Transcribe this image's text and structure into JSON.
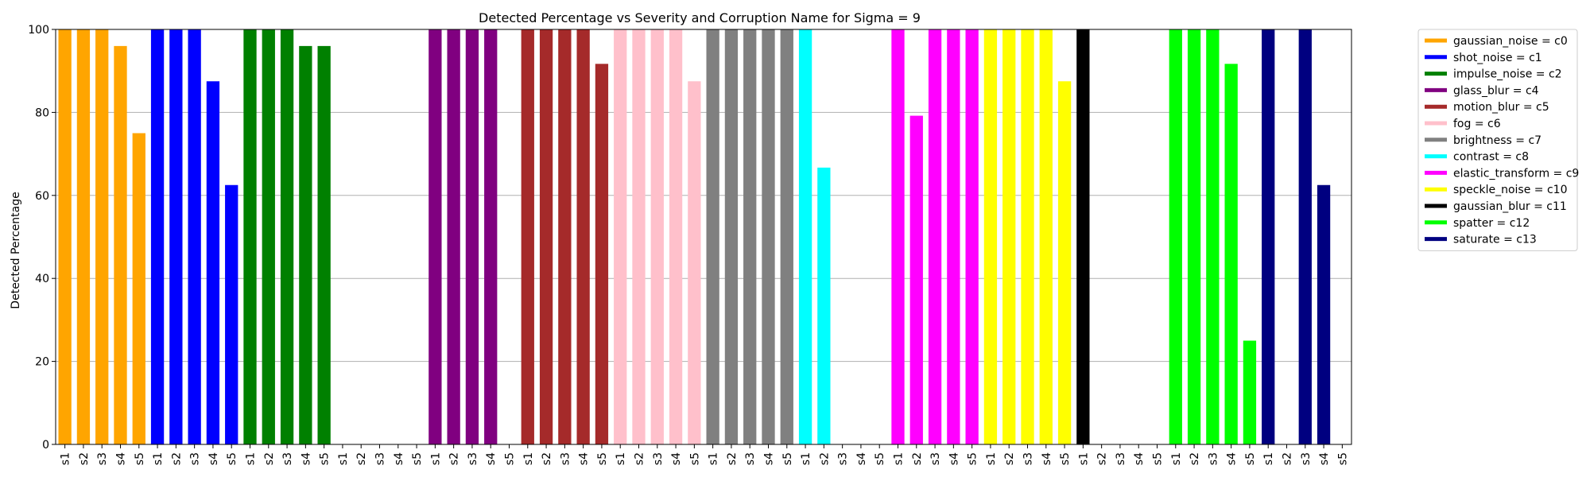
{
  "chart_data": {
    "type": "bar",
    "title": "Detected Percentage vs Severity and Corruption Name for Sigma = 9",
    "xlabel": "",
    "ylabel": "Detected Percentage",
    "ylim": [
      0,
      100
    ],
    "yticks": [
      0,
      20,
      40,
      60,
      80,
      100
    ],
    "grid": "horizontal",
    "legend_position": "outside-top-right",
    "severities": [
      "s1",
      "s2",
      "s3",
      "s4",
      "s5"
    ],
    "series": [
      {
        "name": "gaussian_noise = c0",
        "color": "#ffa500",
        "values": [
          100,
          100,
          100,
          96,
          75
        ]
      },
      {
        "name": "shot_noise = c1",
        "color": "#0000ff",
        "values": [
          100,
          100,
          100,
          87.5,
          62.5
        ]
      },
      {
        "name": "impulse_noise = c2",
        "color": "#008000",
        "values": [
          100,
          100,
          100,
          96,
          96
        ]
      },
      {
        "name": "",
        "color": "#000000",
        "values": [
          0,
          0,
          0,
          0,
          0
        ]
      },
      {
        "name": "glass_blur = c4",
        "color": "#800080",
        "values": [
          100,
          100,
          100,
          100,
          0
        ]
      },
      {
        "name": "motion_blur = c5",
        "color": "#a52a2a",
        "values": [
          100,
          100,
          100,
          100,
          91.7
        ]
      },
      {
        "name": "fog = c6",
        "color": "#ffc0cb",
        "values": [
          100,
          100,
          100,
          100,
          87.5
        ]
      },
      {
        "name": "brightness = c7",
        "color": "#808080",
        "values": [
          100,
          100,
          100,
          100,
          100
        ]
      },
      {
        "name": "contrast = c8",
        "color": "#00ffff",
        "values": [
          100,
          66.7,
          0,
          0,
          0
        ]
      },
      {
        "name": "elastic_transform = c9",
        "color": "#ff00ff",
        "values": [
          100,
          79.2,
          100,
          100,
          100
        ]
      },
      {
        "name": "speckle_noise = c10",
        "color": "#ffff00",
        "values": [
          100,
          100,
          100,
          100,
          87.5
        ]
      },
      {
        "name": "gaussian_blur = c11",
        "color": "#000000",
        "values": [
          100,
          0,
          0,
          0,
          0
        ]
      },
      {
        "name": "spatter = c12",
        "color": "#00ff00",
        "values": [
          100,
          100,
          100,
          91.7,
          25
        ]
      },
      {
        "name": "saturate = c13",
        "color": "#000080",
        "values": [
          100,
          0,
          100,
          62.5,
          0
        ]
      }
    ]
  }
}
